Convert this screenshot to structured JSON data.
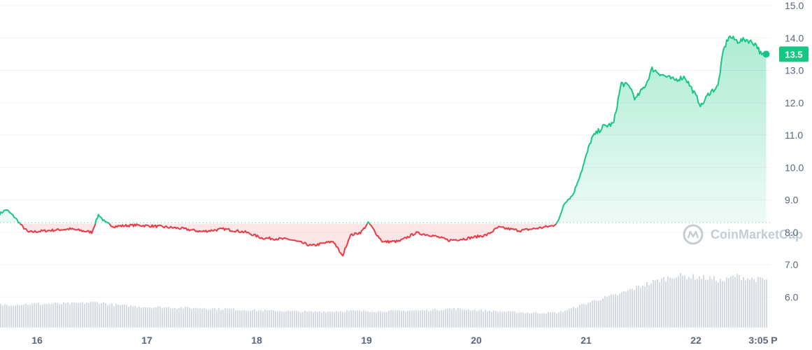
{
  "colors": {
    "up": "#16c784",
    "down": "#ea3943",
    "tag_bg": "#16c784",
    "volume": "#d6dae2",
    "grid": "#eff2f5",
    "axis_text": "#58667e",
    "watermark": "#c5ccd6"
  },
  "watermark": "CoinMarketCap",
  "current_price_label": "13.5",
  "chart_data": {
    "type": "line",
    "title": "",
    "xlabel": "",
    "ylabel": "",
    "x_ticks": [
      "16",
      "17",
      "18",
      "19",
      "20",
      "21",
      "22",
      "3:05 P"
    ],
    "y_ticks": [
      "6.0",
      "7.0",
      "8.0",
      "9.0",
      "10.0",
      "11.0",
      "12.0",
      "13.0",
      "14.0",
      "15.0"
    ],
    "ylim": [
      5.0,
      15.0
    ],
    "baseline": 8.3,
    "grid": true,
    "legend": "none",
    "price_key_points": [
      [
        15.65,
        8.55
      ],
      [
        15.72,
        8.7
      ],
      [
        15.8,
        8.45
      ],
      [
        15.86,
        8.2
      ],
      [
        15.92,
        8.0
      ],
      [
        16.1,
        8.05
      ],
      [
        16.3,
        8.1
      ],
      [
        16.5,
        8.0
      ],
      [
        16.56,
        8.55
      ],
      [
        16.62,
        8.3
      ],
      [
        16.7,
        8.18
      ],
      [
        16.9,
        8.22
      ],
      [
        17.1,
        8.18
      ],
      [
        17.3,
        8.12
      ],
      [
        17.5,
        8.02
      ],
      [
        17.7,
        8.1
      ],
      [
        17.9,
        8.0
      ],
      [
        18.05,
        7.82
      ],
      [
        18.3,
        7.78
      ],
      [
        18.5,
        7.58
      ],
      [
        18.7,
        7.72
      ],
      [
        18.78,
        7.25
      ],
      [
        18.85,
        7.9
      ],
      [
        18.95,
        8.0
      ],
      [
        19.02,
        8.3
      ],
      [
        19.1,
        7.9
      ],
      [
        19.15,
        7.7
      ],
      [
        19.3,
        7.72
      ],
      [
        19.45,
        7.98
      ],
      [
        19.6,
        7.9
      ],
      [
        19.75,
        7.75
      ],
      [
        19.9,
        7.8
      ],
      [
        20.1,
        7.92
      ],
      [
        20.2,
        8.15
      ],
      [
        20.4,
        8.05
      ],
      [
        20.55,
        8.12
      ],
      [
        20.7,
        8.2
      ],
      [
        20.75,
        8.35
      ],
      [
        20.8,
        8.9
      ],
      [
        20.88,
        9.15
      ],
      [
        20.97,
        10.0
      ],
      [
        21.05,
        10.9
      ],
      [
        21.15,
        11.25
      ],
      [
        21.25,
        11.35
      ],
      [
        21.32,
        12.6
      ],
      [
        21.4,
        12.5
      ],
      [
        21.45,
        12.1
      ],
      [
        21.55,
        12.6
      ],
      [
        21.6,
        13.05
      ],
      [
        21.7,
        12.85
      ],
      [
        21.8,
        12.7
      ],
      [
        21.9,
        12.8
      ],
      [
        21.95,
        12.5
      ],
      [
        22.05,
        11.9
      ],
      [
        22.12,
        12.3
      ],
      [
        22.2,
        12.5
      ],
      [
        22.25,
        13.6
      ],
      [
        22.3,
        14.05
      ],
      [
        22.38,
        13.9
      ],
      [
        22.46,
        13.95
      ],
      [
        22.55,
        13.8
      ],
      [
        22.6,
        13.45
      ],
      [
        22.64,
        13.5
      ]
    ],
    "volume_key_points": [
      [
        15.65,
        0.42
      ],
      [
        16.0,
        0.44
      ],
      [
        16.3,
        0.44
      ],
      [
        16.55,
        0.47
      ],
      [
        16.7,
        0.42
      ],
      [
        17.0,
        0.38
      ],
      [
        17.5,
        0.36
      ],
      [
        18.0,
        0.32
      ],
      [
        18.5,
        0.29
      ],
      [
        18.85,
        0.31
      ],
      [
        19.1,
        0.3
      ],
      [
        19.5,
        0.32
      ],
      [
        19.8,
        0.35
      ],
      [
        20.1,
        0.31
      ],
      [
        20.5,
        0.27
      ],
      [
        20.75,
        0.28
      ],
      [
        20.9,
        0.38
      ],
      [
        21.1,
        0.52
      ],
      [
        21.3,
        0.62
      ],
      [
        21.5,
        0.78
      ],
      [
        21.8,
        0.96
      ],
      [
        22.1,
        0.92
      ],
      [
        22.25,
        0.86
      ],
      [
        22.35,
        0.96
      ],
      [
        22.5,
        0.9
      ],
      [
        22.64,
        0.88
      ]
    ]
  }
}
